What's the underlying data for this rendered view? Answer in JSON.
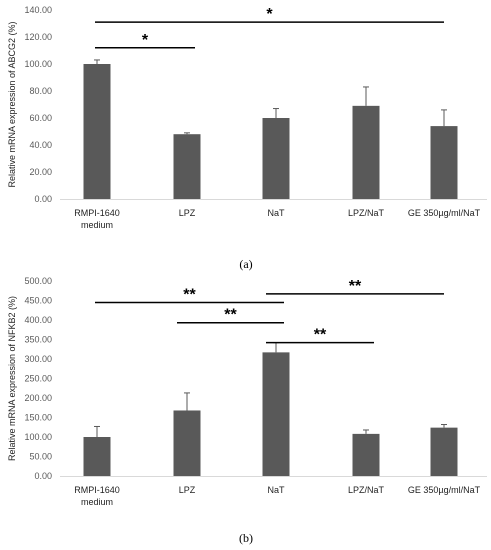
{
  "chart_data": [
    {
      "type": "bar",
      "panel_label": "(a)",
      "categories": [
        "RMPI-1640 medium",
        "LPZ",
        "NaT",
        "LPZ/NaT",
        "GE 350µg/ml/NaT"
      ],
      "category_lines": [
        [
          "RMPI-1640",
          "medium"
        ],
        [
          "LPZ"
        ],
        [
          "NaT"
        ],
        [
          "LPZ/NaT"
        ],
        [
          "GE 350µg/ml/NaT"
        ]
      ],
      "values": [
        100,
        48,
        60,
        69,
        54
      ],
      "errors": [
        3,
        1,
        7,
        14,
        12
      ],
      "ylabel": "Relative mRNA expression of ABCG2 (%)",
      "ylim": [
        0,
        140
      ],
      "yticks": [
        "0.00",
        "20.00",
        "40.00",
        "60.00",
        "80.00",
        "100.00",
        "120.00",
        "140.00"
      ],
      "bar_color": "#595959",
      "significance": [
        {
          "from": 0,
          "to": 1,
          "label": "*",
          "y": 112
        },
        {
          "from": 0,
          "to": 4,
          "label": "*",
          "y": 131
        }
      ]
    },
    {
      "type": "bar",
      "panel_label": "(b)",
      "categories": [
        "RMPI-1640 medium",
        "LPZ",
        "NaT",
        "LPZ/NaT",
        "GE 350µg/ml/NaT"
      ],
      "category_lines": [
        [
          "RMPI-1640",
          "medium"
        ],
        [
          "LPZ"
        ],
        [
          "NaT"
        ],
        [
          "LPZ/NaT"
        ],
        [
          "GE 350µg/ml/NaT"
        ]
      ],
      "values": [
        100,
        168,
        317,
        108,
        124
      ],
      "errors": [
        27,
        45,
        25,
        10,
        8
      ],
      "ylabel": "Relative mRNA expression of NFKB2 (%)",
      "ylim": [
        0,
        500
      ],
      "yticks": [
        "0.00",
        "50.00",
        "100.00",
        "150.00",
        "200.00",
        "250.00",
        "300.00",
        "350.00",
        "400.00",
        "450.00",
        "500.00"
      ],
      "bar_color": "#595959",
      "significance": [
        {
          "from": 0,
          "to": 2,
          "label": "**",
          "y": 445
        },
        {
          "from": 2,
          "to": 4,
          "label": "**",
          "y": 467
        },
        {
          "from": 1,
          "to": 2,
          "label": "**",
          "y": 393
        },
        {
          "from": 2,
          "to": 3,
          "label": "**",
          "y": 342
        }
      ]
    }
  ]
}
